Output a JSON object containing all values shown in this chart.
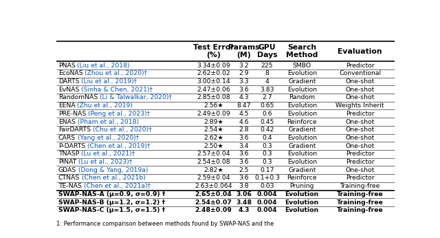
{
  "rows": [
    {
      "name": "PNAS",
      "cite": " (Liu et al., 2018)",
      "suffix": "",
      "test_error": "3.34±0.09",
      "params": "3.2",
      "gpu": "225",
      "search": "SMBO",
      "eval": "Predictor",
      "bold": false
    },
    {
      "name": "EcoNAS",
      "cite": " (Zhou et al., 2020)",
      "suffix": "†",
      "test_error": "2.62±0.02",
      "params": "2.9",
      "gpu": "8",
      "search": "Evolution",
      "eval": "Conventional",
      "bold": false
    },
    {
      "name": "DARTS",
      "cite": " (Liu et al., 2019)",
      "suffix": "†",
      "test_error": "3.00±0.14",
      "params": "3.3",
      "gpu": "4",
      "search": "Gradient",
      "eval": "One-shot",
      "bold": false
    },
    {
      "name": "EvNAS",
      "cite": " (Sinha & Chen, 2021)",
      "suffix": "†",
      "test_error": "2.47±0.06",
      "params": "3.6",
      "gpu": "3.83",
      "search": "Evolution",
      "eval": "One-shot",
      "bold": false
    },
    {
      "name": "RandomNAS",
      "cite": " (Li & Talwalkar, 2020)",
      "suffix": "†",
      "test_error": "2.85±0.08",
      "params": "4.3",
      "gpu": "2.7",
      "search": "Random",
      "eval": "One-shot",
      "bold": false
    },
    {
      "name": "EENA",
      "cite": " (Zhu et al., 2019)",
      "suffix": "",
      "test_error": "2.56★",
      "params": "8.47",
      "gpu": "0.65",
      "search": "Evolution",
      "eval": "Weights Inherit",
      "bold": false
    },
    {
      "name": "PRE-NAS",
      "cite": " (Peng et al., 2023)",
      "suffix": "†",
      "test_error": "2.49±0.09",
      "params": "4.5",
      "gpu": "0.6",
      "search": "Evolution",
      "eval": "Predictor",
      "bold": false
    },
    {
      "name": "ENAS",
      "cite": " (Pham et al., 2018)",
      "suffix": "",
      "test_error": "2.89★",
      "params": "4.6",
      "gpu": "0.45",
      "search": "Reinforce",
      "eval": "One-shot",
      "bold": false
    },
    {
      "name": "FairDARTS",
      "cite": " (Chu et al., 2020)",
      "suffix": "†",
      "test_error": "2.54★",
      "params": "2.8",
      "gpu": "0.42",
      "search": "Gradient",
      "eval": "One-shot",
      "bold": false
    },
    {
      "name": "CARS",
      "cite": " (Yang et al., 2020)",
      "suffix": "†",
      "test_error": "2.62★",
      "params": "3.6",
      "gpu": "0.4",
      "search": "Evolution",
      "eval": "One-shot",
      "bold": false
    },
    {
      "name": "P-DARTS",
      "cite": " (Chen et al., 2019)",
      "suffix": "†",
      "test_error": "2.50★",
      "params": "3.4",
      "gpu": "0.3",
      "search": "Gradient",
      "eval": "One-shot",
      "bold": false
    },
    {
      "name": "TNASP",
      "cite": " (Lu et al., 2021)",
      "suffix": "†",
      "test_error": "2.57±0.04",
      "params": "3.6",
      "gpu": "0.3",
      "search": "Evolution",
      "eval": "Predictor",
      "bold": false
    },
    {
      "name": "PINAT",
      "cite": " (Lu et al., 2023)",
      "suffix": "†",
      "test_error": "2.54±0.08",
      "params": "3.6",
      "gpu": "0.3",
      "search": "Evolution",
      "eval": "Predictor",
      "bold": false
    },
    {
      "name": "GDAS",
      "cite": " (Dong & Yang, 2019a)",
      "suffix": "",
      "test_error": "2.82★",
      "params": "2.5",
      "gpu": "0.17",
      "search": "Gradient",
      "eval": "One-shot",
      "bold": false
    },
    {
      "name": "CTNAS",
      "cite": " (Chen et al., 2021b)",
      "suffix": "",
      "test_error": "2.59±0.04",
      "params": "3.6",
      "gpu": "0.1+0.3",
      "search": "Reinforce",
      "eval": "Predictor",
      "bold": false
    },
    {
      "name": "TE-NAS",
      "cite": " (Chen et al., 2021a)",
      "suffix": "†",
      "test_error": "2.63±0.064",
      "params": "3.8",
      "gpu": "0.03",
      "search": "Pruning",
      "eval": "Training-free",
      "bold": false
    },
    {
      "name": "SWAP-NAS-A (μ=0.9, σ=0.9) †",
      "cite": "",
      "suffix": "",
      "test_error": "2.65±0.04",
      "params": "3.06",
      "gpu": "0.004",
      "search": "Evolution",
      "eval": "Training-free",
      "bold": true
    },
    {
      "name": "SWAP-NAS-B (μ=1.2, σ=1.2) †",
      "cite": "",
      "suffix": "",
      "test_error": "2.54±0.07",
      "params": "3.48",
      "gpu": "0.004",
      "search": "Evolution",
      "eval": "Training-free",
      "bold": true
    },
    {
      "name": "SWAP-NAS-C (μ=1.5, σ=1.5) †",
      "cite": "",
      "suffix": "",
      "test_error": "2.48±0.09",
      "params": "4.3",
      "gpu": "0.004",
      "search": "Evolution",
      "eval": "Training-free",
      "bold": true
    }
  ],
  "col_headers": [
    "",
    "Test Error\n(%)",
    "Params\n(M)",
    "GPU\nDays",
    "Search\nMethod",
    "Evaluation"
  ],
  "separator_before_bold": 16,
  "cite_color": "#0055CC",
  "bg_color": "white",
  "caption": "1: Performance comparison between methods found by SWAP-NAS and the"
}
